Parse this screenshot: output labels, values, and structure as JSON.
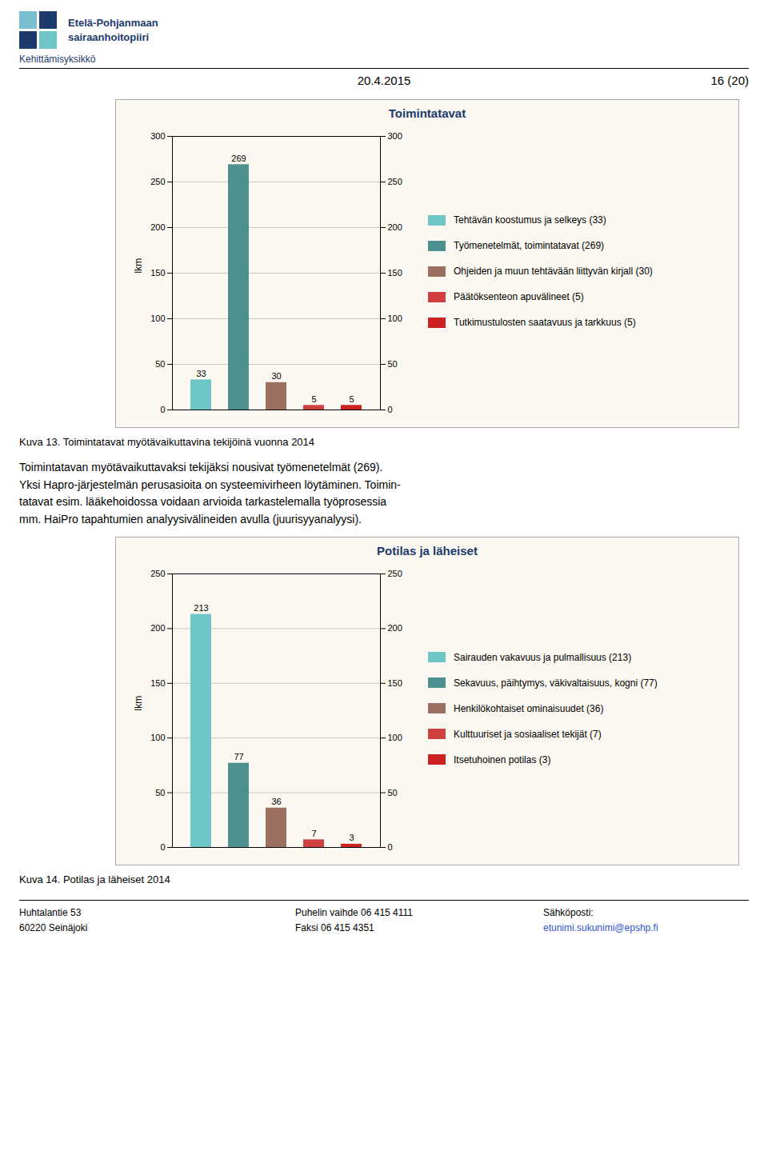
{
  "header": {
    "org_name_line1": "Etelä-Pohjanmaan",
    "org_name_line2": "sairaanhoitopiiri",
    "unit": "Kehittämisyksikkö",
    "date": "20.4.2015",
    "page": "16 (20)"
  },
  "chart_data": [
    {
      "type": "bar",
      "title": "Toimintatavat",
      "categories": [
        "Tehtävän koostumus ja selkeys (33)",
        "Työmenetelmät, toimintatavat (269)",
        "Ohjeiden ja muun tehtävään liittyvän kirjall (30)",
        "Päätöksenteon apuvälineet (5)",
        "Tutkimustulosten saatavuus ja tarkkuus (5)"
      ],
      "values": [
        33,
        269,
        30,
        5,
        5
      ],
      "colors": [
        "#6ec6c7",
        "#4d9090",
        "#9b7060",
        "#d04040",
        "#cc2222"
      ],
      "ylabel": "lkm",
      "ylim": [
        0,
        300
      ],
      "yticks": [
        0,
        50,
        100,
        150,
        200,
        250,
        300
      ],
      "y2lim": [
        0,
        300
      ],
      "y2ticks": [
        0,
        50,
        100,
        150,
        200,
        250,
        300
      ],
      "grid": true,
      "data_labels": true,
      "tick_labels": "y",
      "legend": "right"
    },
    {
      "type": "bar",
      "title": "Potilas ja läheiset",
      "categories": [
        "Sairauden vakavuus ja pulmallisuus (213)",
        "Sekavuus, päihtymys, väkivaltaisuus, kogni (77)",
        "Henkilökohtaiset ominaisuudet (36)",
        "Kulttuuriset ja sosiaaliset tekijät (7)",
        "Itsetuhoinen potilas (3)"
      ],
      "values": [
        213,
        77,
        36,
        7,
        3
      ],
      "colors": [
        "#6ec6c7",
        "#4d9090",
        "#9b7060",
        "#d04040",
        "#cc2222"
      ],
      "ylabel": "lkm",
      "ylim": [
        0,
        250
      ],
      "yticks": [
        0,
        50,
        100,
        150,
        200,
        250
      ],
      "y2lim": [
        0,
        250
      ],
      "y2ticks": [
        0,
        50,
        100,
        150,
        200,
        250
      ],
      "grid": true,
      "data_labels": true,
      "tick_labels": "y",
      "legend": "right"
    }
  ],
  "captions": [
    "Kuva 13. Toimintatavat myötävaikuttavina tekijöinä vuonna 2014",
    "Kuva 14. Potilas ja läheiset 2014"
  ],
  "body_text_lines": [
    "Toimintatavan myötävaikuttavaksi tekijäksi nousivat työmenetelmät (269).",
    "Yksi Hapro-järjestelmän perusasioita on systeemivirheen löytäminen. Toimin-",
    "tatavat esim. lääkehoidossa voidaan arvioida tarkastelemalla työprosessia",
    "mm. HaiPro tapahtumien analyysivälineiden avulla (juurisyyanalyysi)."
  ],
  "footer": {
    "left": "Huhtalantie 53\n60220 Seinäjoki",
    "center": "Puhelin vaihde 06 415 4111\nFaksi 06 415 4351",
    "right_label": "Sähköposti:",
    "right_email": "etunimi.sukunimi@epshp.fi"
  }
}
